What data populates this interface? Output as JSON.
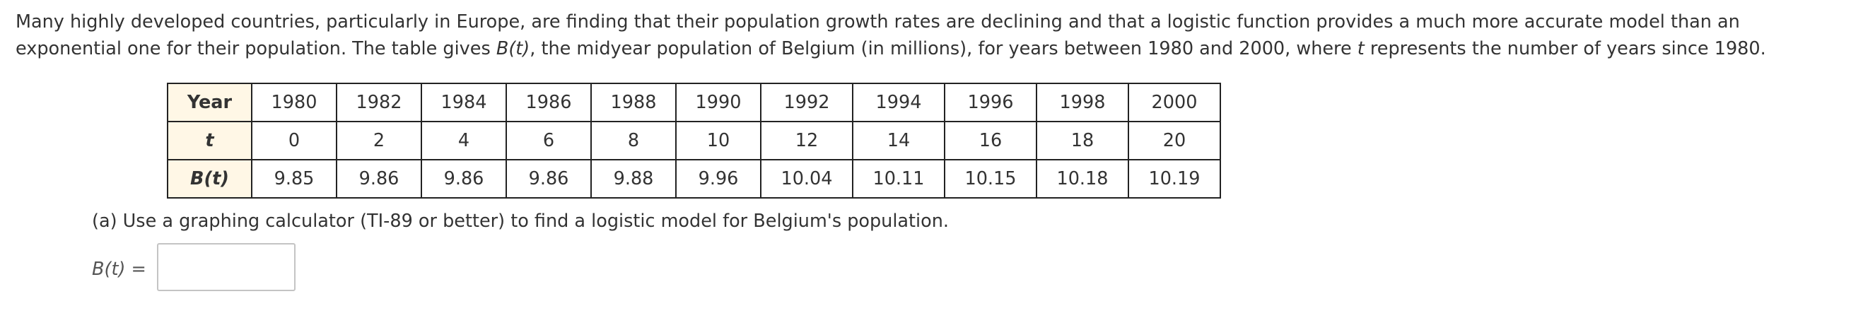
{
  "intro": {
    "part1": "Many highly developed countries, particularly in Europe, are finding that their population growth rates are declining and that a logistic function provides a much more accurate model than an exponential one for their population. The table gives ",
    "func": "B(t)",
    "part2": ", the midyear population of Belgium (in millions), for years between 1980 and 2000, where ",
    "var": "t",
    "part3": " represents the number of years since 1980."
  },
  "table": {
    "rows": [
      {
        "header": "Year",
        "cells": [
          "1980",
          "1982",
          "1984",
          "1986",
          "1988",
          "1990",
          "1992",
          "1994",
          "1996",
          "1998",
          "2000"
        ]
      },
      {
        "header": "t",
        "cells": [
          "0",
          "2",
          "4",
          "6",
          "8",
          "10",
          "12",
          "14",
          "16",
          "18",
          "20"
        ]
      },
      {
        "header": "B(t)",
        "cells": [
          "9.85",
          "9.86",
          "9.86",
          "9.86",
          "9.88",
          "9.96",
          "10.04",
          "10.11",
          "10.15",
          "10.18",
          "10.19"
        ]
      }
    ]
  },
  "part_a": {
    "text": "(a) Use a graphing calculator (TI-89 or better) to find a logistic model for Belgium's population.",
    "answer_label_func": "B(t)",
    "answer_label_eq": " =",
    "answer_value": ""
  }
}
